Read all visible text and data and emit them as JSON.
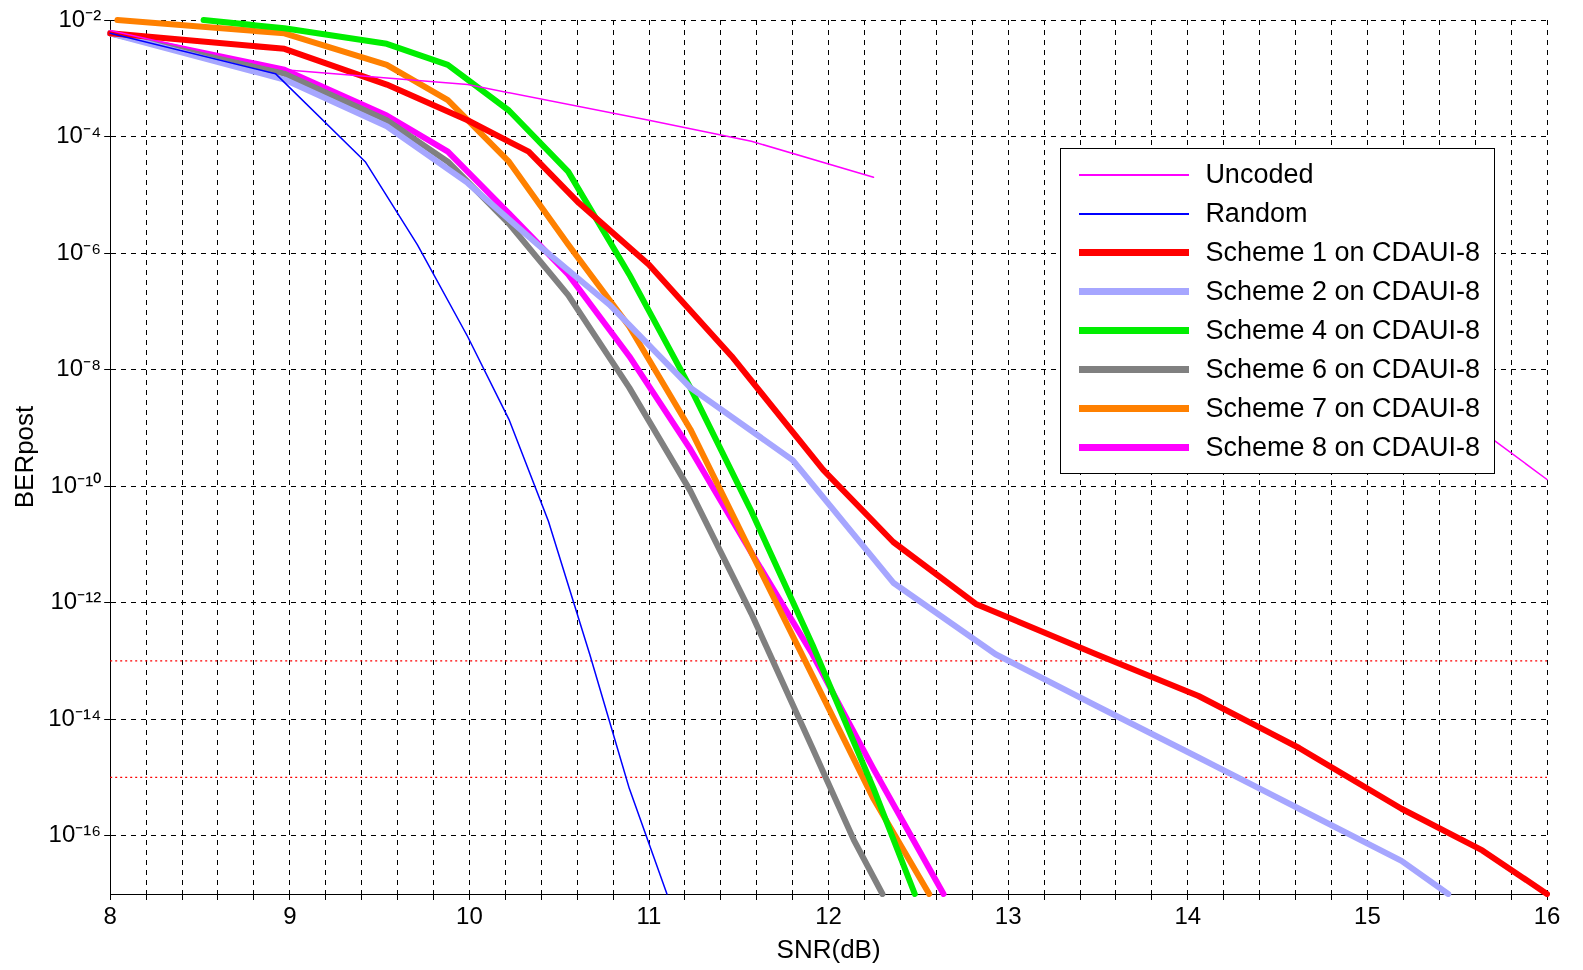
{
  "chart_data": {
    "type": "line",
    "xlabel": "SNR(dB)",
    "ylabel": "BERpost",
    "log": "y",
    "grid": true,
    "legend": "top right",
    "marker": "none",
    "line_style": "solid",
    "xlim": [
      8,
      16
    ],
    "xticks": [
      8,
      {
        "value": 8.2,
        "label": null
      },
      {
        "value": 8.4,
        "label": null
      },
      {
        "value": 8.6,
        "label": null
      },
      {
        "value": 8.8,
        "label": null
      },
      9,
      {
        "value": 9.2,
        "label": null
      },
      {
        "value": 9.4,
        "label": null
      },
      {
        "value": 9.6,
        "label": null
      },
      {
        "value": 9.8,
        "label": null
      },
      10,
      {
        "value": 10.2,
        "label": null
      },
      {
        "value": 10.4,
        "label": null
      },
      {
        "value": 10.6,
        "label": null
      },
      {
        "value": 10.8,
        "label": null
      },
      11,
      {
        "value": 11.2,
        "label": null
      },
      {
        "value": 11.4,
        "label": null
      },
      {
        "value": 11.6,
        "label": null
      },
      {
        "value": 11.8,
        "label": null
      },
      12,
      {
        "value": 12.2,
        "label": null
      },
      {
        "value": 12.4,
        "label": null
      },
      {
        "value": 12.6,
        "label": null
      },
      {
        "value": 12.8,
        "label": null
      },
      13,
      {
        "value": 13.2,
        "label": null
      },
      {
        "value": 13.4,
        "label": null
      },
      {
        "value": 13.6,
        "label": null
      },
      {
        "value": 13.8,
        "label": null
      },
      14,
      {
        "value": 14.2,
        "label": null
      },
      {
        "value": 14.4,
        "label": null
      },
      {
        "value": 14.6,
        "label": null
      },
      {
        "value": 14.8,
        "label": null
      },
      15,
      {
        "value": 15.2,
        "label": null
      },
      {
        "value": 15.4,
        "label": null
      },
      {
        "value": 15.6,
        "label": null
      },
      {
        "value": 15.8,
        "label": null
      },
      16
    ],
    "ylim": [
      1e-17,
      0.01
    ],
    "yticks": [
      {
        "value": 0.01,
        "label": "10⁻²"
      },
      {
        "value": 0.0001,
        "label": "10⁻⁴"
      },
      {
        "value": 1e-06,
        "label": "10⁻⁶"
      },
      {
        "value": 1e-08,
        "label": "10⁻⁸"
      },
      {
        "value": 1e-10,
        "label": "10⁻¹⁰"
      },
      {
        "value": 1e-12,
        "label": "10⁻¹²"
      },
      {
        "value": 1e-14,
        "label": "10⁻¹⁴"
      },
      {
        "value": 1e-16,
        "label": "10⁻¹⁶"
      }
    ],
    "ref_lines": [
      {
        "axis": "y",
        "value": 1e-13,
        "color": "#ff0000",
        "line_style": "dotted"
      },
      {
        "axis": "y",
        "value": 1e-15,
        "color": "#ff0000",
        "line_style": "dotted"
      }
    ],
    "series": [
      {
        "name": "Uncoded",
        "color": "#ff00ff",
        "x": [
          8,
          8.97,
          9.99,
          11.0,
          11.57,
          12.25,
          12.6,
          15.7,
          16
        ],
        "values": [
          0.0066,
          0.0014,
          0.00078,
          0.00019,
          8.3e-05,
          2e-05,
          null,
          6.3e-10,
          1.3e-10
        ]
      },
      {
        "name": "Random",
        "color": "#0000ff",
        "x": [
          8,
          8.92,
          9.42,
          9.71,
          9.99,
          10.22,
          10.44,
          10.67,
          10.89,
          11.1
        ],
        "values": [
          0.0059,
          0.0012,
          3.7e-05,
          1.4e-06,
          3.7e-08,
          1.4e-09,
          2.5e-11,
          1.3e-13,
          6.5e-16,
          1e-17
        ]
      },
      {
        "name": "Scheme 1 on CDAUI-8",
        "color": "#ff0000",
        "x": [
          8,
          8.97,
          9.54,
          9.99,
          10.33,
          10.61,
          11.0,
          11.46,
          11.97,
          12.36,
          12.82,
          13.49,
          14.06,
          14.62,
          15.19,
          15.64,
          16
        ],
        "values": [
          0.0059,
          0.0032,
          0.00078,
          0.00019,
          5.5e-05,
          7.2e-06,
          6.3e-07,
          1.7e-08,
          1.9e-10,
          1.1e-11,
          9.5e-13,
          1.3e-13,
          2.5e-14,
          3.2e-15,
          2.9e-16,
          5.6e-17,
          1e-17
        ]
      },
      {
        "name": "Scheme 2 on CDAUI-8",
        "color": "#a6a6ff",
        "x": [
          8,
          8.97,
          9.54,
          9.99,
          10.38,
          10.78,
          11.23,
          11.8,
          12.36,
          12.93,
          13.49,
          14.06,
          14.62,
          15.19,
          15.45
        ],
        "values": [
          0.0059,
          0.00095,
          0.00015,
          1.6e-05,
          1.4e-06,
          1.3e-07,
          4.9e-09,
          2.8e-10,
          2.2e-12,
          1.3e-13,
          1.7e-14,
          2.2e-15,
          2.9e-16,
          3.7e-17,
          1e-17
        ]
      },
      {
        "name": "Scheme 4 on CDAUI-8",
        "color": "#00ee00",
        "x": [
          8.52,
          8.97,
          9.54,
          9.88,
          10.22,
          10.55,
          10.89,
          11.23,
          11.57,
          11.91,
          12.25,
          12.48
        ],
        "values": [
          0.01,
          0.0072,
          0.0039,
          0.0017,
          0.00028,
          2.5e-05,
          4.3e-07,
          4.9e-09,
          3.7e-11,
          1.9e-13,
          6.5e-16,
          1e-17
        ]
      },
      {
        "name": "Scheme 6 on CDAUI-8",
        "color": "#808080",
        "x": [
          8,
          8.97,
          9.54,
          9.88,
          10.22,
          10.55,
          10.89,
          11.23,
          11.57,
          11.91,
          12.14,
          12.3
        ],
        "values": [
          0.0059,
          0.0012,
          0.00019,
          3.7e-05,
          3.2e-06,
          1.9e-07,
          4.9e-09,
          8.3e-11,
          6.5e-13,
          3.2e-15,
          8.5e-17,
          1e-17
        ]
      },
      {
        "name": "Scheme 7 on CDAUI-8",
        "color": "#ff8000",
        "x": [
          8.04,
          8.97,
          9.54,
          9.88,
          10.22,
          10.55,
          10.89,
          11.23,
          11.57,
          11.91,
          12.25,
          12.56
        ],
        "values": [
          0.01,
          0.0059,
          0.0017,
          0.00042,
          3.7e-05,
          1.4e-06,
          5.5e-08,
          9.5e-10,
          7.2e-12,
          5.6e-14,
          4.3e-16,
          1e-17
        ]
      },
      {
        "name": "Scheme 8 on CDAUI-8",
        "color": "#ff00ff",
        "x": [
          8,
          8.97,
          9.54,
          9.88,
          10.22,
          10.55,
          10.89,
          11.23,
          11.57,
          11.91,
          12.25,
          12.64
        ],
        "values": [
          0.0059,
          0.0014,
          0.00023,
          5.5e-05,
          4.8e-06,
          4.3e-07,
          1.7e-08,
          4.3e-10,
          7.2e-12,
          1.3e-13,
          1.4e-15,
          1e-17
        ]
      }
    ]
  }
}
